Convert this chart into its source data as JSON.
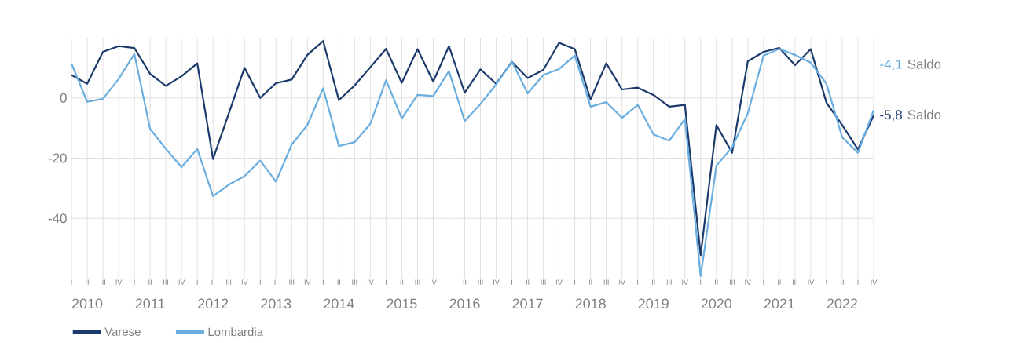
{
  "chart_data": {
    "type": "line",
    "categories": [
      "I",
      "II",
      "III",
      "IV",
      "I",
      "II",
      "III",
      "IV",
      "I",
      "II",
      "III",
      "IV",
      "I",
      "II",
      "III",
      "IV",
      "I",
      "II",
      "III",
      "IV",
      "I",
      "II",
      "III",
      "IV",
      "I",
      "II",
      "III",
      "IV",
      "I",
      "II",
      "III",
      "IV",
      "I",
      "II",
      "III",
      "IV",
      "I",
      "II",
      "III",
      "IV",
      "I",
      "II",
      "III",
      "IV",
      "I",
      "II",
      "III",
      "IV",
      "I",
      "II",
      "III",
      "IV"
    ],
    "series": [
      {
        "name": "Varese",
        "color": "#1b3a6b",
        "values": [
          7.6,
          4.7,
          15.3,
          17.2,
          16.6,
          8.0,
          4.0,
          7.2,
          11.5,
          -20.3,
          -5.2,
          10.0,
          0,
          4.9,
          6.1,
          14.3,
          18.9,
          -0.7,
          4.1,
          10.2,
          16.3,
          5.0,
          16.2,
          5.4,
          17.2,
          1.7,
          9.5,
          4.7,
          12.0,
          6.6,
          9.3,
          18.3,
          16.2,
          -0.5,
          11.5,
          2.8,
          3.4,
          1.0,
          -2.9,
          -2.3,
          -52.2,
          -9.0,
          -18.2,
          12.2,
          15.3,
          16.6,
          10.9,
          16.2,
          -1.6,
          -9.0,
          -17.1,
          -5.8
        ],
        "value_labels": [
          null,
          null,
          null,
          null,
          null,
          null,
          null,
          null,
          null,
          null,
          null,
          null,
          null,
          null,
          null,
          null,
          null,
          null,
          null,
          null,
          null,
          null,
          null,
          null,
          null,
          null,
          null,
          null,
          null,
          null,
          null,
          null,
          null,
          null,
          null,
          null,
          null,
          null,
          null,
          null,
          null,
          null,
          null,
          null,
          null,
          null,
          null,
          null,
          null,
          null,
          null,
          "-5,8"
        ]
      },
      {
        "name": "Lombardia",
        "color": "#6aaee0",
        "values": [
          11.4,
          -1.3,
          -0.3,
          6.3,
          14.6,
          -10.3,
          -16.9,
          -23.0,
          -16.9,
          -32.6,
          -28.8,
          -26.0,
          -20.8,
          -27.8,
          -15.5,
          -9.0,
          3.2,
          -16.0,
          -14.7,
          -8.6,
          5.9,
          -6.8,
          1.0,
          0.6,
          8.9,
          -7.7,
          -2.0,
          4.5,
          12.1,
          1.5,
          7.6,
          9.6,
          14.1,
          -2.9,
          -1.4,
          -6.6,
          -2.3,
          -12.1,
          -14.2,
          -7.0,
          -59.2,
          -22.5,
          -16.4,
          -5.1,
          14.1,
          16.3,
          14.3,
          11.7,
          4.7,
          -13.1,
          -18.2,
          -4.1
        ],
        "value_labels": [
          null,
          null,
          null,
          null,
          null,
          null,
          null,
          null,
          null,
          null,
          null,
          null,
          null,
          null,
          null,
          null,
          null,
          null,
          null,
          null,
          null,
          null,
          null,
          null,
          null,
          null,
          null,
          null,
          null,
          null,
          null,
          null,
          null,
          null,
          null,
          null,
          null,
          null,
          null,
          null,
          null,
          null,
          null,
          null,
          null,
          null,
          null,
          null,
          null,
          null,
          null,
          "-4,1"
        ]
      }
    ],
    "annotations": [
      "2010",
      "2011",
      "2012",
      "2013",
      "2014",
      "2015",
      "2016",
      "2017",
      "2018",
      "2019",
      "2020",
      "2021",
      "2022",
      "Saldo",
      "Saldo"
    ],
    "ylim": [
      -60,
      20
    ],
    "yticks": [
      0,
      -20,
      -40
    ],
    "grid": true,
    "legend": "bottom"
  }
}
